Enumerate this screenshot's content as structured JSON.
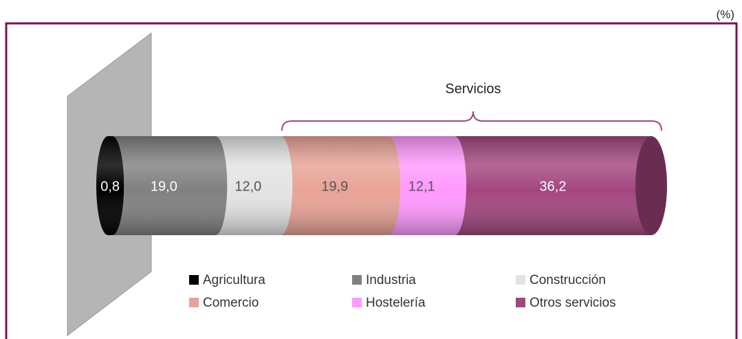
{
  "chart_data": {
    "type": "bar",
    "orientation": "horizontal",
    "stacked": true,
    "unit_label": "(%)",
    "annotation": "Servicios",
    "categories": [
      null
    ],
    "xlim": [
      0,
      100
    ],
    "series": [
      {
        "name": "Agricultura",
        "color": "#000000",
        "values": [
          0.8
        ],
        "value_labels": [
          "0,8"
        ]
      },
      {
        "name": "Industria",
        "color": "#808080",
        "values": [
          19.0
        ],
        "value_labels": [
          "19,0"
        ]
      },
      {
        "name": "Construcción",
        "color": "#e3e3e3",
        "values": [
          12.0
        ],
        "value_labels": [
          "12,0"
        ]
      },
      {
        "name": "Comercio",
        "color": "#e8a396",
        "values": [
          19.9
        ],
        "value_labels": [
          "19,9"
        ]
      },
      {
        "name": "Hostelería",
        "color": "#ff99ff",
        "values": [
          12.1
        ],
        "value_labels": [
          "12,1"
        ]
      },
      {
        "name": "Otros servicios",
        "color": "#a3467f",
        "values": [
          36.2
        ],
        "value_labels": [
          "36,2"
        ]
      }
    ]
  }
}
